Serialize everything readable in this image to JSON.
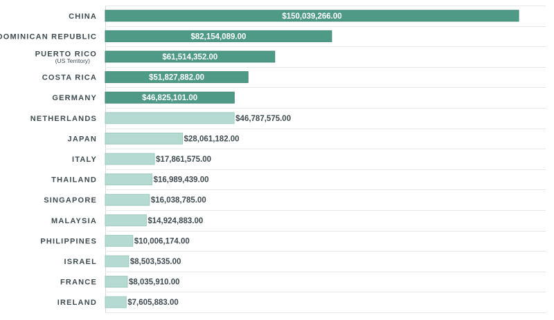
{
  "chart_data": {
    "type": "bar",
    "orientation": "horizontal",
    "categories": [
      {
        "name": "CHINA",
        "sub": ""
      },
      {
        "name": "DOMINICAN REPUBLIC",
        "sub": ""
      },
      {
        "name": "PUERTO RICO",
        "sub": "(US Territory)"
      },
      {
        "name": "COSTA RICA",
        "sub": ""
      },
      {
        "name": "GERMANY",
        "sub": ""
      },
      {
        "name": "NETHERLANDS",
        "sub": ""
      },
      {
        "name": "JAPAN",
        "sub": ""
      },
      {
        "name": "ITALY",
        "sub": ""
      },
      {
        "name": "THAILAND",
        "sub": ""
      },
      {
        "name": "SINGAPORE",
        "sub": ""
      },
      {
        "name": "MALAYSIA",
        "sub": ""
      },
      {
        "name": "PHILIPPINES",
        "sub": ""
      },
      {
        "name": "ISRAEL",
        "sub": ""
      },
      {
        "name": "FRANCE",
        "sub": ""
      },
      {
        "name": "IRELAND",
        "sub": ""
      }
    ],
    "values": [
      150039266,
      82154089,
      61514352,
      51827882,
      46825101,
      46787575,
      28061182,
      17861575,
      16989439,
      16038785,
      14924883,
      10006174,
      8503535,
      8035910,
      7605883
    ],
    "value_labels": [
      "$150,039,266.00",
      "$82,154,089.00",
      "$61,514,352.00",
      "$51,827,882.00",
      "$46,825,101.00",
      "$46,787,575.00",
      "$28,061,182.00",
      "$17,861,575.00",
      "$16,989,439.00",
      "$16,038,785.00",
      "$14,924,883.00",
      "$10,006,174.00",
      "$8,503,535.00",
      "$8,035,910.00",
      "$7,605,883.00"
    ],
    "highlighted_top": 5,
    "title": "",
    "xlabel": "",
    "ylabel": "",
    "xlim": [
      0,
      160000000
    ],
    "grid": "horizontal-row-separators",
    "legend": "none",
    "colors": {
      "highlight": "#4e9a86",
      "highlight_border": "#3f8773",
      "normal": "#b4dad1",
      "normal_border": "#9cc9bd"
    }
  }
}
